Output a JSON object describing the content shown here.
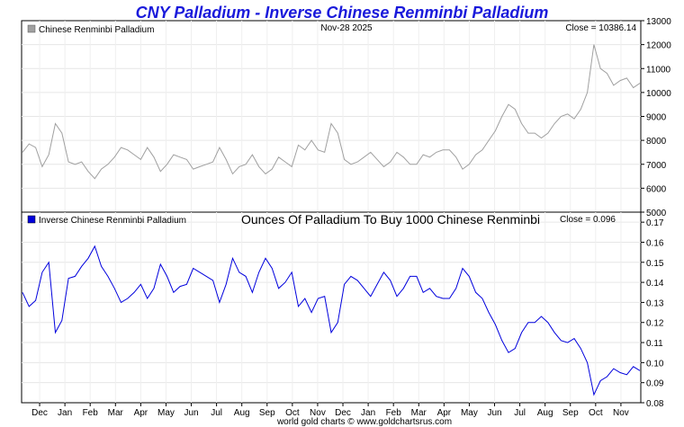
{
  "chart_data": [
    {
      "type": "line",
      "panel": "top",
      "title": "CNY Palladium - Inverse Chinese Renminbi Palladium",
      "date": "Nov-28  2025",
      "legend": "Chinese Renminbi Palladium",
      "close_label": "Close = 10386.14",
      "ylim": [
        5000,
        13000
      ],
      "yticks": [
        "13000",
        "12000",
        "11000",
        "10000",
        "9000",
        "8000",
        "7000",
        "6000",
        "5000"
      ],
      "ytick_values": [
        13000,
        12000,
        11000,
        10000,
        9000,
        8000,
        7000,
        6000,
        5000
      ],
      "colors": {
        "line": "#a0a0a0",
        "legend_marker": "#a0a0a0"
      },
      "series": [
        {
          "name": "Chinese Renminbi Palladium",
          "values": [
            7500,
            7850,
            7700,
            6900,
            7400,
            8700,
            8300,
            7100,
            7000,
            7100,
            6700,
            6400,
            6800,
            7000,
            7300,
            7700,
            7600,
            7400,
            7200,
            7700,
            7300,
            6700,
            7000,
            7400,
            7300,
            7200,
            6800,
            6900,
            7000,
            7100,
            7700,
            7200,
            6600,
            6900,
            7000,
            7400,
            6900,
            6600,
            6800,
            7300,
            7100,
            6900,
            7800,
            7600,
            8000,
            7600,
            7500,
            8700,
            8300,
            7200,
            7000,
            7100,
            7300,
            7500,
            7200,
            6900,
            7100,
            7500,
            7300,
            7000,
            7000,
            7400,
            7300,
            7500,
            7600,
            7600,
            7300,
            6800,
            7000,
            7400,
            7600,
            8000,
            8400,
            9000,
            9500,
            9300,
            8700,
            8300,
            8300,
            8100,
            8300,
            8700,
            9000,
            9100,
            8900,
            9300,
            10000,
            12000,
            11000,
            10800,
            10300,
            10500,
            10600,
            10200,
            10386.14
          ]
        }
      ]
    },
    {
      "type": "line",
      "panel": "bottom",
      "subtitle": "Ounces Of Palladium To Buy 1000 Chinese Renminbi",
      "legend": "Inverse Chinese Renminbi Palladium",
      "close_label": "Close = 0.096",
      "ylim": [
        0.08,
        0.175
      ],
      "yticks": [
        "0.17",
        "0.16",
        "0.15",
        "0.14",
        "0.13",
        "0.12",
        "0.11",
        "0.10",
        "0.09",
        "0.08"
      ],
      "ytick_values": [
        0.17,
        0.16,
        0.15,
        0.14,
        0.13,
        0.12,
        0.11,
        0.1,
        0.09,
        0.08
      ],
      "xticks": [
        "Dec",
        "Jan",
        "Feb",
        "Mar",
        "Apr",
        "May",
        "Jun",
        "Jul",
        "Aug",
        "Sep",
        "Oct",
        "Nov",
        "Dec",
        "Jan",
        "Feb",
        "Mar",
        "Apr",
        "May",
        "Jun",
        "Jul",
        "Aug",
        "Sep",
        "Oct",
        "Nov"
      ],
      "colors": {
        "line": "#0000dd",
        "legend_marker": "#0000dd"
      },
      "series": [
        {
          "name": "Inverse Chinese Renminbi Palladium",
          "values": [
            0.135,
            0.128,
            0.131,
            0.145,
            0.15,
            0.115,
            0.121,
            0.142,
            0.143,
            0.148,
            0.152,
            0.158,
            0.148,
            0.143,
            0.137,
            0.13,
            0.132,
            0.135,
            0.139,
            0.132,
            0.137,
            0.149,
            0.143,
            0.135,
            0.138,
            0.139,
            0.147,
            0.145,
            0.143,
            0.141,
            0.13,
            0.139,
            0.152,
            0.145,
            0.143,
            0.135,
            0.145,
            0.152,
            0.147,
            0.137,
            0.14,
            0.145,
            0.128,
            0.132,
            0.125,
            0.132,
            0.133,
            0.115,
            0.12,
            0.139,
            0.143,
            0.141,
            0.137,
            0.133,
            0.139,
            0.145,
            0.141,
            0.133,
            0.137,
            0.143,
            0.143,
            0.135,
            0.137,
            0.133,
            0.132,
            0.132,
            0.137,
            0.147,
            0.143,
            0.135,
            0.132,
            0.125,
            0.119,
            0.111,
            0.105,
            0.107,
            0.115,
            0.12,
            0.12,
            0.123,
            0.12,
            0.115,
            0.111,
            0.11,
            0.112,
            0.107,
            0.1,
            0.084,
            0.091,
            0.093,
            0.097,
            0.095,
            0.094,
            0.098,
            0.096
          ]
        }
      ]
    }
  ],
  "footer": "world gold charts © www.goldchartsrus.com"
}
